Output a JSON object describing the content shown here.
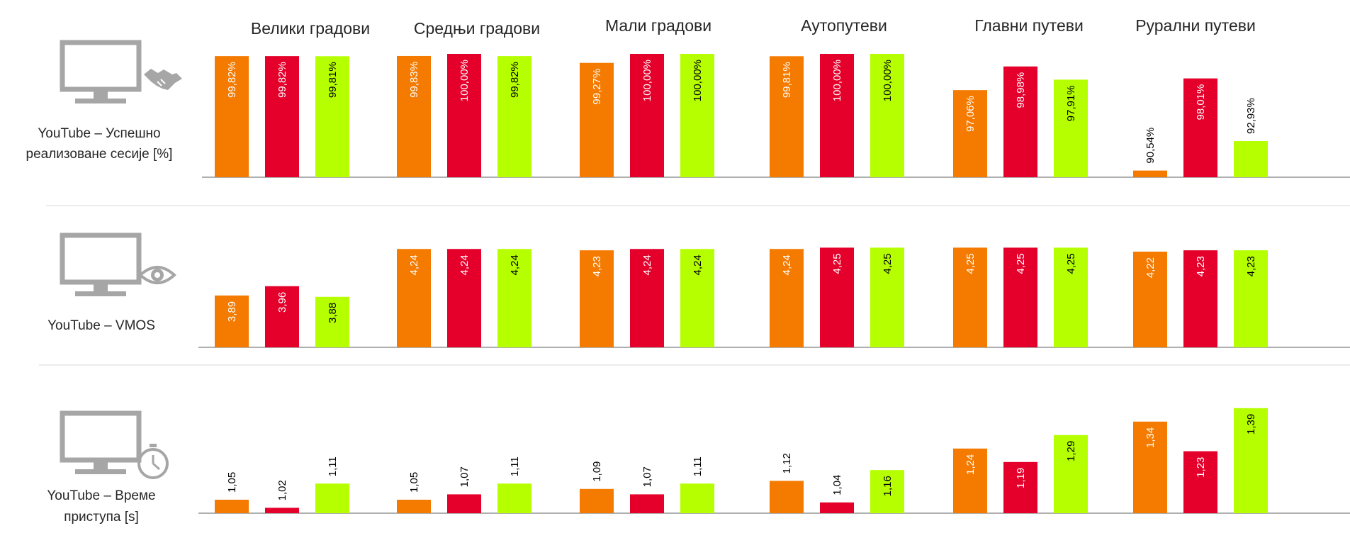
{
  "colors": {
    "operator_1": "#f47a00",
    "operator_2": "#e4002b",
    "operator_3": "#b5ff00",
    "axis": "#7f7f7f",
    "separator": "#d9d9d9",
    "icon": "#a6a6a6",
    "text": "#262626"
  },
  "chart_data": {
    "type": "bar",
    "categories": [
      "Велики градови",
      "Средњи градови",
      "Мали градови",
      "Аутопутеви",
      "Главни путеви",
      "Рурални путеви"
    ],
    "panels": [
      {
        "label_lines": [
          "YouTube – Успешно",
          "реализоване сесије [%]"
        ],
        "icon": "handshake-icon",
        "unit": "%",
        "ylim": [
          90,
          100
        ],
        "series": [
          {
            "name": "operator-1",
            "values": [
              99.82,
              99.83,
              99.27,
              99.81,
              97.06,
              90.54
            ],
            "labels": [
              "99,82%",
              "99,83%",
              "99,27%",
              "99,81%",
              "97,06%",
              "90,54%"
            ]
          },
          {
            "name": "operator-2",
            "values": [
              99.82,
              100.0,
              100.0,
              100.0,
              98.98,
              98.01
            ],
            "labels": [
              "99,82%",
              "100,00%",
              "100,00%",
              "100,00%",
              "98,98%",
              "98,01%"
            ]
          },
          {
            "name": "operator-3",
            "values": [
              99.81,
              99.82,
              100.0,
              100.0,
              97.91,
              92.93
            ],
            "labels": [
              "99,81%",
              "99,82%",
              "100,00%",
              "100,00%",
              "97,91%",
              "92,93%"
            ]
          }
        ]
      },
      {
        "label_lines": [
          "YouTube – VMOS"
        ],
        "icon": "eye-icon",
        "unit": "",
        "ylim": [
          3.5,
          4.3
        ],
        "series": [
          {
            "name": "operator-1",
            "values": [
              3.89,
              4.24,
              4.23,
              4.24,
              4.25,
              4.22
            ],
            "labels": [
              "3,89",
              "4,24",
              "4,23",
              "4,24",
              "4,25",
              "4,22"
            ]
          },
          {
            "name": "operator-2",
            "values": [
              3.96,
              4.24,
              4.24,
              4.25,
              4.25,
              4.23
            ],
            "labels": [
              "3,96",
              "4,24",
              "4,24",
              "4,25",
              "4,25",
              "4,23"
            ]
          },
          {
            "name": "operator-3",
            "values": [
              3.88,
              4.24,
              4.24,
              4.25,
              4.25,
              4.23
            ],
            "labels": [
              "3,88",
              "4,24",
              "4,24",
              "4,25",
              "4,25",
              "4,23"
            ]
          }
        ]
      },
      {
        "label_lines": [
          "YouTube – Време",
          "приступа [s]"
        ],
        "icon": "stopwatch-icon",
        "unit": "s",
        "ylim": [
          1.0,
          1.4
        ],
        "series": [
          {
            "name": "operator-1",
            "values": [
              1.05,
              1.05,
              1.09,
              1.12,
              1.24,
              1.34
            ],
            "labels": [
              "1,05",
              "1,05",
              "1,09",
              "1,12",
              "1,24",
              "1,34"
            ]
          },
          {
            "name": "operator-2",
            "values": [
              1.02,
              1.07,
              1.07,
              1.04,
              1.19,
              1.23
            ],
            "labels": [
              "1,02",
              "1,07",
              "1,07",
              "1,04",
              "1,19",
              "1,23"
            ]
          },
          {
            "name": "operator-3",
            "values": [
              1.11,
              1.11,
              1.11,
              1.16,
              1.29,
              1.39
            ],
            "labels": [
              "1,11",
              "1,11",
              "1,11",
              "1,16",
              "1,29",
              "1,39"
            ]
          }
        ]
      }
    ]
  }
}
